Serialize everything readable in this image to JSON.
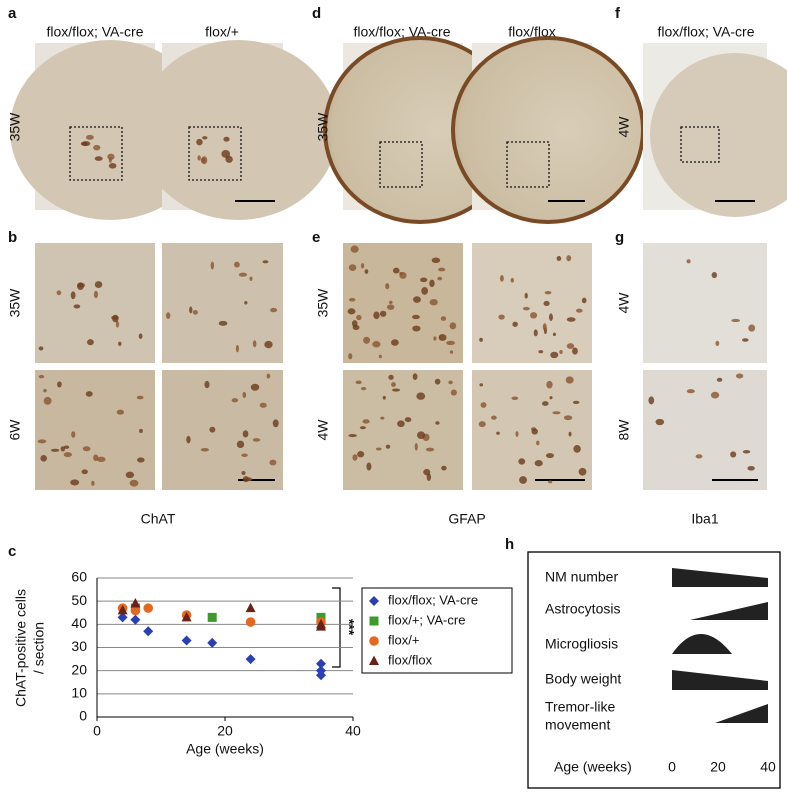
{
  "panel_a": {
    "letter": "a",
    "columns": [
      "flox/flox; VA-cre",
      "flox/+"
    ],
    "row": "35W"
  },
  "panel_b": {
    "letter": "b",
    "rows": [
      "35W",
      "6W"
    ],
    "caption": "ChAT"
  },
  "panel_d": {
    "letter": "d",
    "columns": [
      "flox/flox; VA-cre",
      "flox/flox"
    ],
    "row": "35W"
  },
  "panel_e": {
    "letter": "e",
    "rows": [
      "35W",
      "4W"
    ],
    "caption": "GFAP"
  },
  "panel_f": {
    "letter": "f",
    "column": "flox/flox; VA-cre",
    "row": "4W"
  },
  "panel_g": {
    "letter": "g",
    "rows": [
      "4W",
      "8W"
    ],
    "caption": "Iba1"
  },
  "chart_data": {
    "type": "scatter",
    "letter": "c",
    "ylabel": [
      "ChAT-positive cells",
      "/ section"
    ],
    "xlabel": "Age (weeks)",
    "xlim": [
      0,
      40
    ],
    "xticks": [
      0,
      20,
      40
    ],
    "ylim": [
      0,
      60
    ],
    "yticks": [
      0,
      10,
      20,
      30,
      40,
      50,
      60
    ],
    "grid": true,
    "legend": "right",
    "annotation": "***",
    "series": [
      {
        "name": "flox/flox; VA-cre",
        "color": "#2b3fb5",
        "marker": "diamond",
        "x": [
          4,
          6,
          8,
          14,
          18,
          24,
          35,
          35,
          35
        ],
        "values": [
          43,
          42,
          37,
          33,
          32,
          25,
          23,
          20,
          18
        ]
      },
      {
        "name": "flox/+; VA-cre",
        "color": "#3d9b2c",
        "marker": "square",
        "x": [
          6,
          18,
          35
        ],
        "values": [
          47,
          43,
          43
        ]
      },
      {
        "name": "flox/+",
        "color": "#e2691f",
        "marker": "circle",
        "x": [
          4,
          6,
          8,
          14,
          24,
          35
        ],
        "values": [
          47,
          46,
          47,
          44,
          41,
          41
        ]
      },
      {
        "name": "flox/flox",
        "color": "#6b2216",
        "marker": "triangle",
        "x": [
          4,
          6,
          14,
          24,
          35,
          35
        ],
        "values": [
          46,
          49,
          43,
          47,
          39,
          40
        ]
      }
    ]
  },
  "panel_h": {
    "letter": "h",
    "rows": [
      "NM number",
      "Astrocytosis",
      "Microgliosis",
      "Body weight",
      [
        "Tremor-like",
        "movement"
      ]
    ],
    "axis_label": "Age (weeks)",
    "ticks": [
      0,
      20,
      40
    ]
  }
}
